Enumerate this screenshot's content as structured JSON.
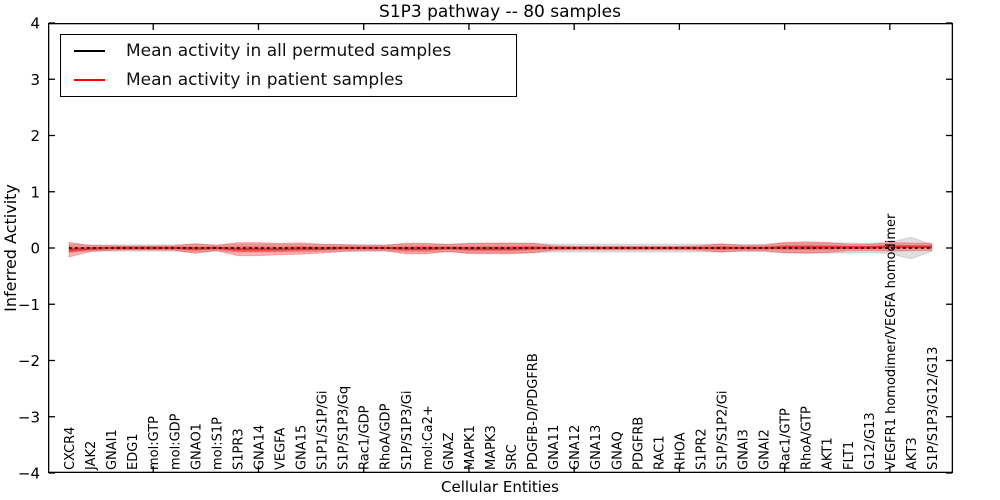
{
  "chart_data": {
    "type": "line",
    "title": "S1P3 pathway -- 80 samples",
    "xlabel": "Cellular Entities",
    "ylabel": "Inferred Activity",
    "xlim": [
      0,
      43
    ],
    "ylim": [
      -4,
      4
    ],
    "yticks": [
      -4,
      -3,
      -2,
      -1,
      0,
      1,
      2,
      3,
      4
    ],
    "xtick_marks": [
      5,
      10,
      15,
      20,
      25,
      30,
      35,
      40
    ],
    "grid": false,
    "legend_position": "upper-left",
    "categories": [
      "CXCR4",
      "JAK2",
      "GNAI1",
      "EDG1",
      "mol:GTP",
      "mol:GDP",
      "GNAO1",
      "mol:S1P",
      "S1PR3",
      "GNA14",
      "VEGFA",
      "GNA15",
      "S1P1/S1P/Gi",
      "S1P/S1P3/Gq",
      "Rac1/GDP",
      "RhoA/GDP",
      "S1P/S1P3/Gi",
      "mol:Ca2+",
      "GNAZ",
      "MAPK1",
      "MAPK3",
      "SRC",
      "PDGFB-D/PDGFRB",
      "GNA11",
      "GNA12",
      "GNA13",
      "GNAQ",
      "PDGFRB",
      "RAC1",
      "RHOA",
      "S1PR2",
      "S1P/S1P2/Gi",
      "GNAI3",
      "GNAI2",
      "Rac1/GTP",
      "RhoA/GTP",
      "AKT1",
      "FLT1",
      "G12/G13",
      "VEGFR1 homodimer/VEGFA homodimer",
      "AKT3",
      "S1P/S1P3/G12/G13"
    ],
    "series": [
      {
        "name": "Mean activity in all permuted samples",
        "color": "#000000",
        "line_style": "dashed",
        "band_color": "#808080",
        "mean": [
          0,
          0,
          0,
          0,
          0,
          0,
          0,
          0,
          0,
          0,
          0,
          0,
          0,
          0,
          0,
          0,
          0,
          0,
          0,
          0,
          0,
          0,
          0,
          0,
          0,
          0,
          0,
          0,
          0,
          0,
          0,
          0,
          0,
          0,
          0,
          0,
          0,
          0,
          0,
          0,
          0,
          0
        ],
        "std": [
          0.07,
          0.055,
          0.055,
          0.055,
          0.055,
          0.055,
          0.07,
          0.055,
          0.07,
          0.07,
          0.07,
          0.07,
          0.06,
          0.06,
          0.06,
          0.06,
          0.07,
          0.07,
          0.07,
          0.085,
          0.085,
          0.085,
          0.085,
          0.07,
          0.07,
          0.07,
          0.07,
          0.07,
          0.07,
          0.07,
          0.07,
          0.07,
          0.065,
          0.065,
          0.09,
          0.09,
          0.09,
          0.09,
          0.08,
          0.1,
          0.19,
          0.06
        ]
      },
      {
        "name": "Mean activity in patient samples",
        "color": "#ff0000",
        "line_style": "solid",
        "band_color": "#ff0000",
        "mean": [
          -0.03,
          -0.01,
          0,
          0,
          0,
          0,
          -0.01,
          0,
          -0.02,
          -0.02,
          -0.02,
          -0.01,
          -0.01,
          0,
          0,
          0,
          -0.01,
          -0.01,
          0,
          -0.01,
          -0.01,
          -0.01,
          0,
          0,
          0,
          0,
          0,
          0,
          0,
          0,
          0,
          0,
          0,
          0,
          0.01,
          0.01,
          0.01,
          0.01,
          0.01,
          0.02,
          0.02,
          0.02
        ],
        "std": [
          0.13,
          0.055,
          0.04,
          0.035,
          0.035,
          0.04,
          0.085,
          0.045,
          0.115,
          0.115,
          0.1,
          0.1,
          0.08,
          0.06,
          0.045,
          0.045,
          0.095,
          0.095,
          0.06,
          0.09,
          0.095,
          0.095,
          0.085,
          0.04,
          0.03,
          0.03,
          0.03,
          0.03,
          0.03,
          0.03,
          0.04,
          0.075,
          0.045,
          0.05,
          0.09,
          0.1,
          0.09,
          0.06,
          0.055,
          0.075,
          0.07,
          0.065
        ]
      }
    ]
  }
}
